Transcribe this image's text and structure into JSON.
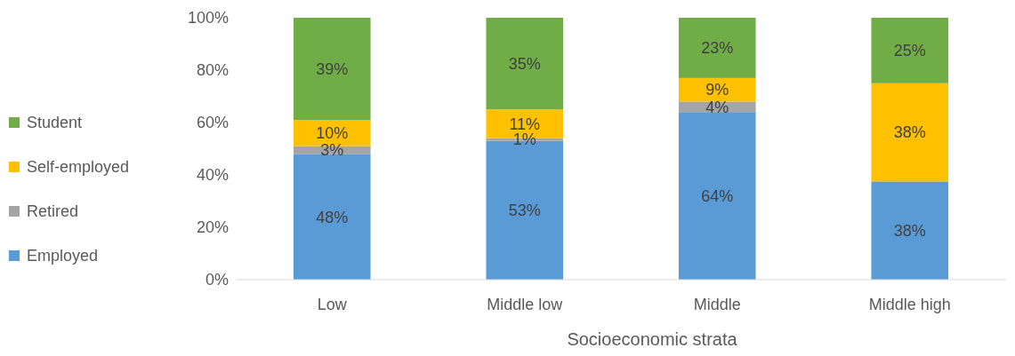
{
  "chart_data": {
    "type": "bar",
    "stacked": true,
    "xlabel": "Socioeconomic strata",
    "categories": [
      "Low",
      "Middle low",
      "Middle",
      "Middle high"
    ],
    "series": [
      {
        "name": "Employed",
        "color": "#5b9bd5",
        "values": [
          48,
          53,
          64,
          37.5
        ],
        "value_labels": [
          "48%",
          "53%",
          "64%",
          "38%"
        ]
      },
      {
        "name": "Retired",
        "color": "#a5a5a5",
        "values": [
          3,
          1,
          4,
          null
        ],
        "value_labels": [
          "3%",
          "1%",
          "4%",
          null
        ]
      },
      {
        "name": "Self-employed",
        "color": "#ffc000",
        "values": [
          10,
          11,
          9,
          37.5
        ],
        "value_labels": [
          "10%",
          "11%",
          "9%",
          "38%"
        ]
      },
      {
        "name": "Student",
        "color": "#70ad47",
        "values": [
          39,
          35,
          23,
          25
        ],
        "value_labels": [
          "39%",
          "35%",
          "23%",
          "25%"
        ]
      }
    ],
    "ylim": [
      0,
      100
    ],
    "yticks": [
      {
        "value": 0,
        "label": "0%"
      },
      {
        "value": 20,
        "label": "20%"
      },
      {
        "value": 40,
        "label": "40%"
      },
      {
        "value": 60,
        "label": "60%"
      },
      {
        "value": 80,
        "label": "80%"
      },
      {
        "value": 100,
        "label": "100%"
      }
    ],
    "legend": "left",
    "grid": false
  }
}
